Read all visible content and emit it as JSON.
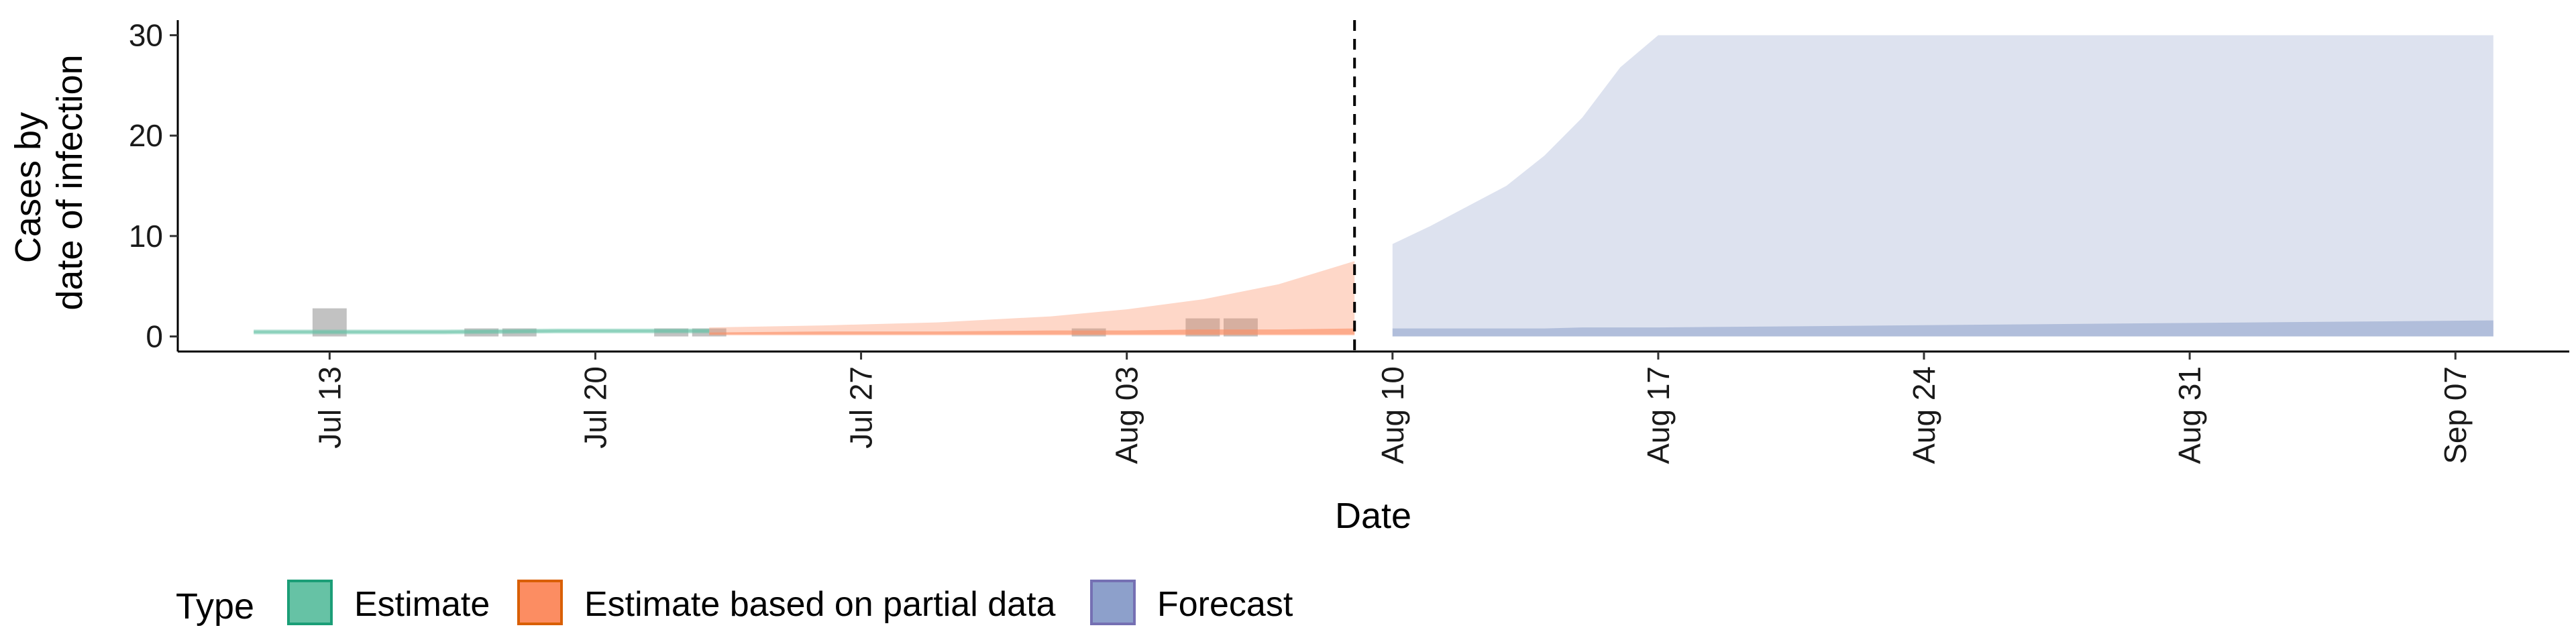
{
  "chart_data": {
    "type": "area",
    "xlabel": "Date",
    "ylabel_lines": [
      "Cases by",
      "date of infection"
    ],
    "x_range": [
      "2020-07-09",
      "2020-09-10"
    ],
    "ylim": [
      -1.5,
      31.5
    ],
    "y_ticks": [
      0,
      10,
      20,
      30
    ],
    "x_ticks": [
      {
        "date": "2020-07-13",
        "label": "Jul 13"
      },
      {
        "date": "2020-07-20",
        "label": "Jul 20"
      },
      {
        "date": "2020-07-27",
        "label": "Jul 27"
      },
      {
        "date": "2020-08-03",
        "label": "Aug 03"
      },
      {
        "date": "2020-08-10",
        "label": "Aug 10"
      },
      {
        "date": "2020-08-17",
        "label": "Aug 17"
      },
      {
        "date": "2020-08-24",
        "label": "Aug 24"
      },
      {
        "date": "2020-08-31",
        "label": "Aug 31"
      },
      {
        "date": "2020-09-07",
        "label": "Sep 07"
      }
    ],
    "forecast_start": "2020-08-09",
    "grid": false,
    "legend_position": "bottom",
    "legend_title": "Type",
    "series": [
      {
        "name": "Estimate",
        "color": "#1b9e77",
        "fill": "#66c2a5",
        "x": [
          "2020-07-11",
          "2020-07-13",
          "2020-07-16",
          "2020-07-19",
          "2020-07-22",
          "2020-07-23"
        ],
        "lower": [
          0.2,
          0.2,
          0.2,
          0.3,
          0.3,
          0.3
        ],
        "upper": [
          0.7,
          0.7,
          0.7,
          0.8,
          0.8,
          0.8
        ],
        "inner_lower": [
          0.3,
          0.3,
          0.3,
          0.4,
          0.4,
          0.4
        ],
        "inner_upper": [
          0.6,
          0.6,
          0.6,
          0.7,
          0.7,
          0.7
        ]
      },
      {
        "name": "Estimate based on partial data",
        "color": "#d95f02",
        "fill": "#fc8d62",
        "x": [
          "2020-07-23",
          "2020-07-26",
          "2020-07-29",
          "2020-08-01",
          "2020-08-03",
          "2020-08-05",
          "2020-08-07",
          "2020-08-09"
        ],
        "lower": [
          0.1,
          0.1,
          0.1,
          0.1,
          0.1,
          0.1,
          0.1,
          0.1
        ],
        "upper": [
          0.9,
          1.1,
          1.4,
          2.0,
          2.7,
          3.7,
          5.2,
          7.5
        ],
        "inner_lower": [
          0.2,
          0.2,
          0.2,
          0.2,
          0.2,
          0.2,
          0.2,
          0.2
        ],
        "inner_upper": [
          0.4,
          0.5,
          0.5,
          0.6,
          0.6,
          0.7,
          0.7,
          0.8
        ]
      },
      {
        "name": "Forecast",
        "color": "#7570b3",
        "fill": "#8da0cb",
        "x": [
          "2020-08-10",
          "2020-08-11",
          "2020-08-12",
          "2020-08-13",
          "2020-08-14",
          "2020-08-15",
          "2020-08-16",
          "2020-08-17",
          "2020-09-08"
        ],
        "lower": [
          0,
          0,
          0,
          0,
          0,
          0,
          0,
          0,
          0
        ],
        "upper": [
          9.2,
          11.0,
          13.0,
          15.0,
          18.0,
          21.8,
          26.8,
          30.0,
          30.0
        ],
        "inner_lower": [
          0,
          0,
          0,
          0,
          0,
          0,
          0,
          0,
          0
        ],
        "inner_upper": [
          0.8,
          0.8,
          0.8,
          0.8,
          0.8,
          0.9,
          0.9,
          0.9,
          1.6
        ]
      }
    ],
    "observed": {
      "color": "#999999",
      "bars": [
        {
          "date": "2020-07-13",
          "value": 2.8
        },
        {
          "date": "2020-07-17",
          "value": 0.8
        },
        {
          "date": "2020-07-18",
          "value": 0.8
        },
        {
          "date": "2020-07-22",
          "value": 0.8
        },
        {
          "date": "2020-07-23",
          "value": 0.8
        },
        {
          "date": "2020-08-02",
          "value": 0.8
        },
        {
          "date": "2020-08-05",
          "value": 1.8
        },
        {
          "date": "2020-08-06",
          "value": 1.8
        }
      ]
    }
  }
}
